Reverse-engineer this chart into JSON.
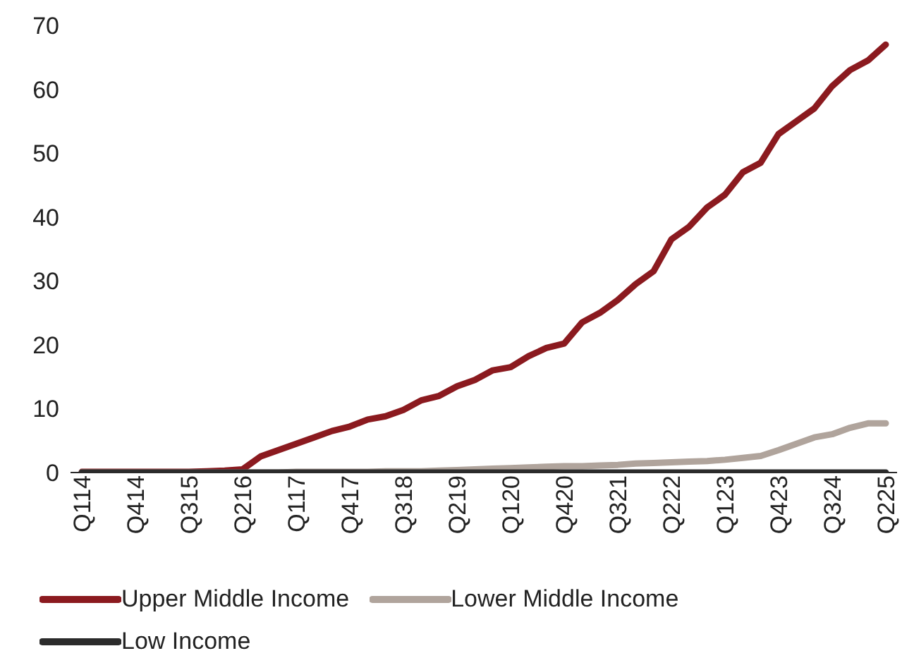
{
  "chart_data": {
    "type": "line",
    "categories": [
      "Q114",
      null,
      null,
      "Q414",
      null,
      null,
      "Q315",
      null,
      null,
      "Q216",
      null,
      null,
      "Q117",
      null,
      null,
      "Q417",
      null,
      null,
      "Q318",
      null,
      null,
      "Q219",
      null,
      null,
      "Q120",
      null,
      null,
      "Q420",
      null,
      null,
      "Q321",
      null,
      null,
      "Q222",
      null,
      null,
      "Q123",
      null,
      null,
      "Q423",
      null,
      null,
      "Q324",
      null,
      null,
      "Q225"
    ],
    "series": [
      {
        "name": "Upper Middle Income",
        "color": "#8b1a1f",
        "values": [
          0.1,
          0.1,
          0.1,
          0.1,
          0.1,
          0.1,
          0.1,
          0.2,
          0.3,
          0.5,
          2.5,
          3.5,
          4.5,
          5.5,
          6.5,
          7.2,
          8.3,
          8.8,
          9.8,
          11.3,
          12,
          13.5,
          14.5,
          16,
          16.5,
          18.2,
          19.5,
          20.2,
          23.5,
          25,
          27,
          29.5,
          31.5,
          36.5,
          38.5,
          41.5,
          43.5,
          47,
          48.5,
          53,
          55,
          57,
          60.5,
          63,
          64.5,
          67
        ]
      },
      {
        "name": "Lower Middle Income",
        "color": "#b0a49c",
        "values": [
          0,
          0,
          0,
          0,
          0,
          0,
          0,
          0,
          0,
          0,
          0,
          0,
          0.1,
          0.1,
          0.1,
          0.1,
          0.1,
          0.2,
          0.2,
          0.2,
          0.3,
          0.4,
          0.5,
          0.6,
          0.7,
          0.8,
          0.9,
          1,
          1,
          1.1,
          1.2,
          1.4,
          1.5,
          1.6,
          1.7,
          1.8,
          2,
          2.3,
          2.6,
          3.5,
          4.5,
          5.5,
          6,
          7,
          7.7,
          7.7
        ]
      },
      {
        "name": "Low Income",
        "color": "#2b2b2b",
        "values": [
          0,
          0,
          0,
          0,
          0,
          0,
          0,
          0,
          0,
          0,
          0,
          0,
          0,
          0,
          0,
          0,
          0,
          0,
          0,
          0,
          0,
          0,
          0,
          0,
          0,
          0,
          0,
          0,
          0,
          0,
          0,
          0,
          0,
          0,
          0,
          0,
          0,
          0,
          0,
          0,
          0,
          0,
          0,
          0,
          0,
          0
        ]
      }
    ],
    "ylim": [
      0,
      70
    ],
    "yticks": [
      0,
      10,
      20,
      30,
      40,
      50,
      60,
      70
    ],
    "grid": false,
    "legend": "bottom",
    "marker": "none",
    "line_style": "solid"
  }
}
